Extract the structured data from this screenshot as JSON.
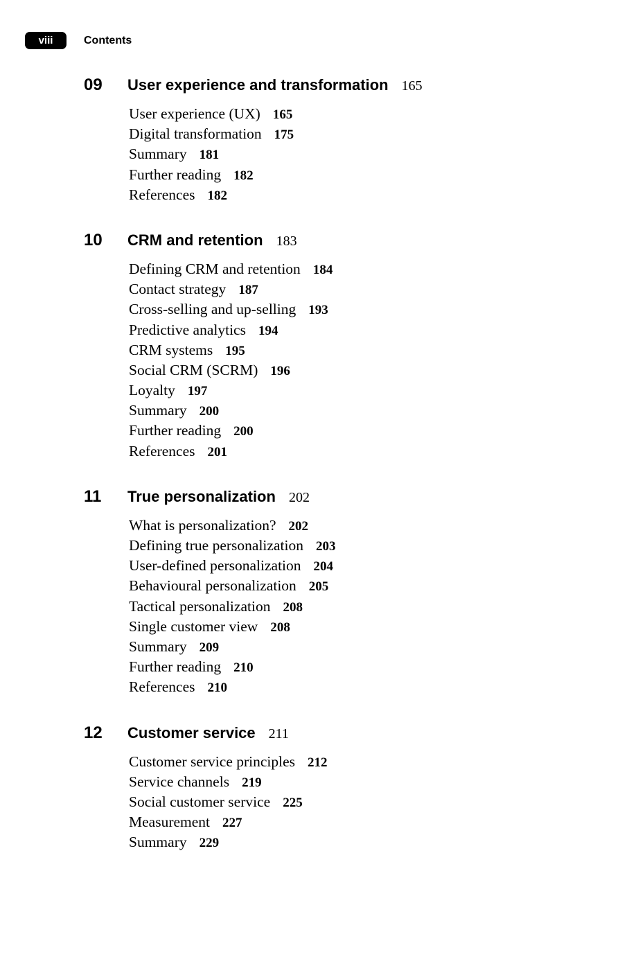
{
  "header": {
    "folio": "viii",
    "title": "Contents"
  },
  "chapters": [
    {
      "number": "09",
      "title": "User experience and transformation",
      "page": "165",
      "entries": [
        {
          "title": "User experience (UX)",
          "page": "165"
        },
        {
          "title": "Digital transformation",
          "page": "175"
        },
        {
          "title": "Summary",
          "page": "181"
        },
        {
          "title": "Further reading",
          "page": "182"
        },
        {
          "title": "References",
          "page": "182"
        }
      ]
    },
    {
      "number": "10",
      "title": "CRM and retention",
      "page": "183",
      "entries": [
        {
          "title": "Defining CRM and retention",
          "page": "184"
        },
        {
          "title": "Contact strategy",
          "page": "187"
        },
        {
          "title": "Cross-selling and up-selling",
          "page": "193"
        },
        {
          "title": "Predictive analytics",
          "page": "194"
        },
        {
          "title": "CRM systems",
          "page": "195"
        },
        {
          "title": "Social CRM (SCRM)",
          "page": "196"
        },
        {
          "title": "Loyalty",
          "page": "197"
        },
        {
          "title": "Summary",
          "page": "200"
        },
        {
          "title": "Further reading",
          "page": "200"
        },
        {
          "title": "References",
          "page": "201"
        }
      ]
    },
    {
      "number": "11",
      "title": "True personalization",
      "page": "202",
      "entries": [
        {
          "title": "What is personalization?",
          "page": "202"
        },
        {
          "title": "Defining true personalization",
          "page": "203"
        },
        {
          "title": "User-defined personalization",
          "page": "204"
        },
        {
          "title": "Behavioural personalization",
          "page": "205"
        },
        {
          "title": "Tactical personalization",
          "page": "208"
        },
        {
          "title": "Single customer view",
          "page": "208"
        },
        {
          "title": "Summary",
          "page": "209"
        },
        {
          "title": "Further reading",
          "page": "210"
        },
        {
          "title": "References",
          "page": "210"
        }
      ]
    },
    {
      "number": "12",
      "title": "Customer service",
      "page": "211",
      "entries": [
        {
          "title": "Customer service principles",
          "page": "212"
        },
        {
          "title": "Service channels",
          "page": "219"
        },
        {
          "title": "Social customer service",
          "page": "225"
        },
        {
          "title": "Measurement",
          "page": "227"
        },
        {
          "title": "Summary",
          "page": "229"
        }
      ]
    }
  ]
}
